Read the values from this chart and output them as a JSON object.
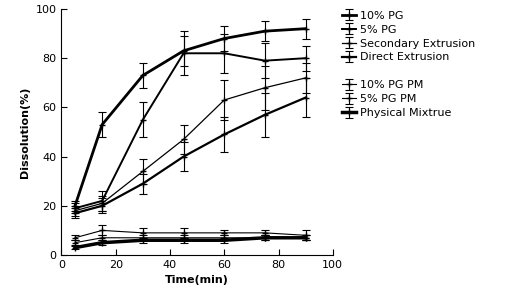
{
  "time": [
    5,
    15,
    30,
    45,
    60,
    75,
    90
  ],
  "series": [
    {
      "label": "10% PG",
      "y": [
        20,
        53,
        73,
        83,
        88,
        91,
        92
      ],
      "yerr": [
        2,
        5,
        5,
        6,
        5,
        4,
        4
      ],
      "lw": 2.0,
      "marker": "+"
    },
    {
      "label": "5% PG",
      "y": [
        19,
        22,
        55,
        82,
        82,
        79,
        80
      ],
      "yerr": [
        2,
        4,
        7,
        9,
        8,
        7,
        5
      ],
      "lw": 1.4,
      "marker": "+"
    },
    {
      "label": "Secondary Extrusion",
      "y": [
        18,
        21,
        34,
        47,
        63,
        68,
        72
      ],
      "yerr": [
        2,
        3,
        5,
        6,
        8,
        9,
        6
      ],
      "lw": 0.9,
      "marker": "+"
    },
    {
      "label": "Direct Extrusion",
      "y": [
        17,
        20,
        29,
        40,
        49,
        57,
        64
      ],
      "yerr": [
        2,
        3,
        4,
        6,
        7,
        9,
        8
      ],
      "lw": 1.6,
      "marker": "+"
    },
    {
      "label": "10% PG PM",
      "y": [
        7,
        10,
        9,
        9,
        9,
        9,
        8
      ],
      "yerr": [
        1,
        2,
        2,
        2,
        1,
        1,
        2
      ],
      "lw": 0.8,
      "marker": "+"
    },
    {
      "label": "5% PG PM",
      "y": [
        5,
        7,
        7,
        7,
        7,
        7,
        7
      ],
      "yerr": [
        1,
        1,
        1,
        1,
        1,
        1,
        1
      ],
      "lw": 0.8,
      "marker": "+"
    },
    {
      "label": "Physical Mixtrue",
      "y": [
        3,
        5,
        6,
        6,
        6,
        7,
        7
      ],
      "yerr": [
        0.5,
        1,
        1,
        1,
        1,
        1,
        1
      ],
      "lw": 2.5,
      "marker": "+"
    }
  ],
  "xlabel": "Time(min)",
  "ylabel": "Dissolution(%)",
  "xlim": [
    0,
    100
  ],
  "ylim": [
    0,
    100
  ],
  "xticks": [
    0,
    20,
    40,
    60,
    80,
    100
  ],
  "yticks": [
    0,
    20,
    40,
    60,
    80,
    100
  ],
  "color": "#000000",
  "bg_color": "#ffffff",
  "axis_fontsize": 8,
  "legend_fontsize": 8,
  "tick_fontsize": 8,
  "legend_entries": [
    {
      "label": "10% PG",
      "group": "top"
    },
    {
      "label": "5% PG",
      "group": "top"
    },
    {
      "label": "Secondary Extrusion",
      "group": "top"
    },
    {
      "label": "Direct Extrusion",
      "group": "top"
    },
    {
      "label": "10% PG PM",
      "group": "bottom"
    },
    {
      "label": "5% PG PM",
      "group": "bottom"
    },
    {
      "label": "Physical Mixtrue",
      "group": "bottom"
    }
  ]
}
